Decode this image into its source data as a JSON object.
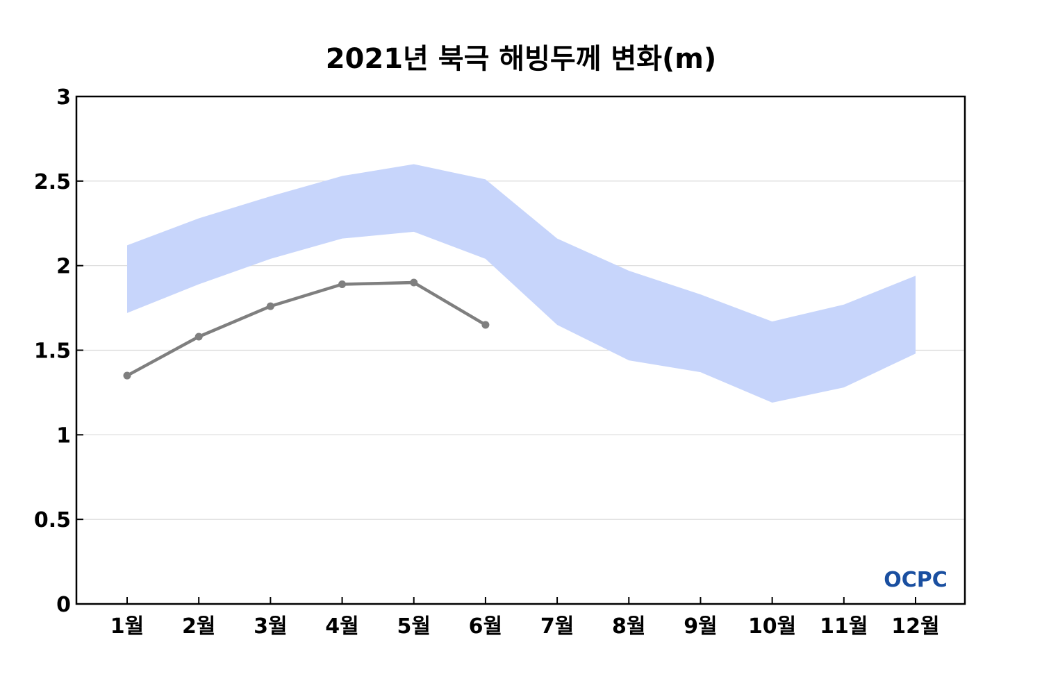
{
  "chart_data": {
    "type": "line",
    "title": "2021년 북극 해빙두께 변화(m)",
    "xlabel": "",
    "ylabel": "",
    "categories": [
      "1월",
      "2월",
      "3월",
      "4월",
      "5월",
      "6월",
      "7월",
      "8월",
      "9월",
      "10월",
      "11월",
      "12월"
    ],
    "ylim": [
      0,
      3
    ],
    "yticks": [
      "0",
      "0.5",
      "1",
      "1.5",
      "2",
      "2.5",
      "3"
    ],
    "grid": "horizontal",
    "series": [
      {
        "type": "line",
        "color": "#7f7f7f",
        "values": [
          1.35,
          1.58,
          1.76,
          1.89,
          1.9,
          1.65,
          null,
          null,
          null,
          null,
          null,
          null
        ]
      },
      {
        "type": "range-band",
        "color": "#c7d5fb",
        "upper": [
          2.12,
          2.28,
          2.41,
          2.53,
          2.6,
          2.51,
          2.16,
          1.97,
          1.83,
          1.67,
          1.77,
          1.94
        ],
        "lower": [
          1.72,
          1.89,
          2.04,
          2.16,
          2.2,
          2.04,
          1.65,
          1.44,
          1.37,
          1.19,
          1.28,
          1.48
        ]
      }
    ]
  },
  "logo": {
    "text": "OCPC",
    "color_light": "#5ab0e8",
    "color_dark": "#1a4fa0"
  }
}
